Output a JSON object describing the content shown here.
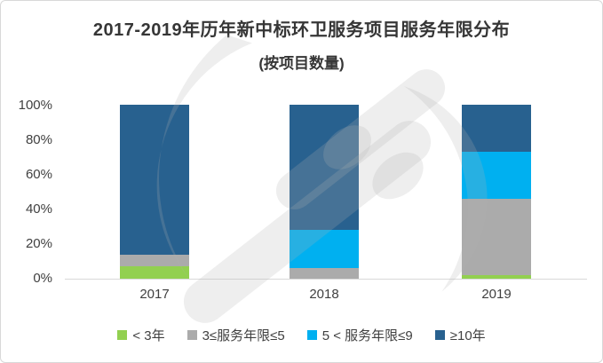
{
  "title": "2017-2019年历年新中标环卫服务项目服务年限分布",
  "subtitle": "(按项目数量)",
  "chart_data": {
    "type": "bar",
    "stacked": true,
    "percent": true,
    "title": "2017-2019年历年新中标环卫服务项目服务年限分布",
    "subtitle": "(按项目数量)",
    "categories": [
      "2017",
      "2018",
      "2019"
    ],
    "series": [
      {
        "name": "< 3年",
        "color": "#92D050",
        "values": [
          7,
          0,
          2
        ]
      },
      {
        "name": "3≤服务年限≤5",
        "color": "#ABABAB",
        "values": [
          7,
          6,
          44
        ]
      },
      {
        "name": "5 < 服务年限≤9",
        "color": "#00B0F0",
        "values": [
          0,
          22,
          27
        ]
      },
      {
        "name": "≥10年",
        "color": "#28618F",
        "values": [
          86,
          72,
          27
        ]
      }
    ],
    "y_ticks": [
      "0%",
      "20%",
      "40%",
      "60%",
      "80%",
      "100%"
    ],
    "ylim": [
      0,
      100
    ],
    "ylabel": "",
    "xlabel": "",
    "grid": false,
    "legend_position": "bottom"
  }
}
